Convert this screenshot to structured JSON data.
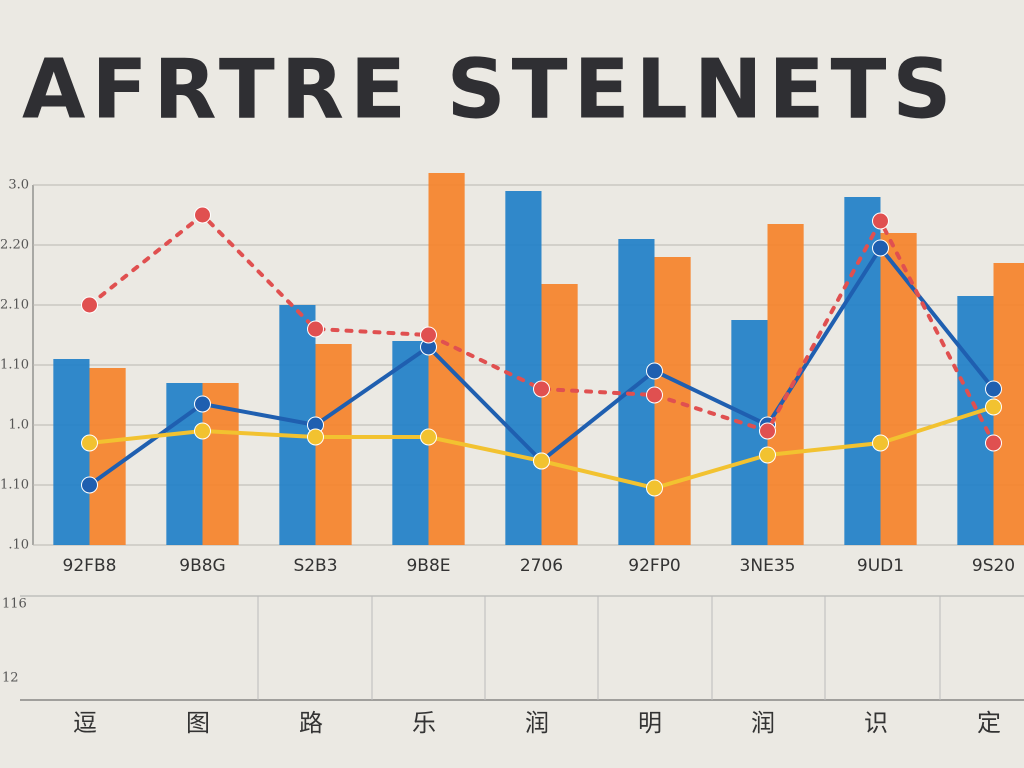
{
  "chart_data": {
    "type": "bar",
    "title": "AFRTRE STELNETS",
    "categories": [
      "92FB8",
      "9B8G",
      "S2B3",
      "9B8E",
      "2706",
      "92FP0",
      "3NE35",
      "9UD1",
      "9S20"
    ],
    "series": [
      {
        "color": "#1f7fc8",
        "values": [
          3.1,
          2.7,
          4.0,
          3.4,
          5.9,
          5.1,
          3.75,
          5.8,
          4.15
        ]
      },
      {
        "color": "#f5822a",
        "values": [
          2.95,
          2.7,
          3.35,
          6.2,
          4.35,
          4.8,
          5.35,
          5.2,
          4.7
        ]
      }
    ],
    "lines": [
      {
        "color": "#1f5fb0",
        "values": [
          1.0,
          2.35,
          2.0,
          3.3,
          1.4,
          2.9,
          2.0,
          4.95,
          2.6
        ]
      },
      {
        "color": "#f2c230",
        "values": [
          1.7,
          1.9,
          1.8,
          1.8,
          1.4,
          0.95,
          1.5,
          1.7,
          2.3
        ]
      },
      {
        "color": "#e05050",
        "dashed": true,
        "values": [
          4.0,
          5.5,
          3.6,
          3.5,
          2.6,
          2.5,
          1.9,
          5.4,
          1.7
        ]
      }
    ],
    "ylim": [
      0,
      6.5
    ],
    "yticks": [
      {
        "value": 0,
        "label": ".10"
      },
      {
        "value": 1,
        "label": "1.10"
      },
      {
        "value": 2,
        "label": "1.0"
      },
      {
        "value": 3,
        "label": "1.10"
      },
      {
        "value": 4,
        "label": "2.10"
      },
      {
        "value": 5,
        "label": "2.20"
      },
      {
        "value": 6,
        "label": "3.0"
      }
    ],
    "grid": true
  },
  "lower_panel": {
    "ylabels": [
      "116",
      "12"
    ],
    "categories": [
      "逗",
      "图",
      "路",
      "乐",
      "润",
      "明",
      "润",
      "识",
      "定"
    ]
  }
}
